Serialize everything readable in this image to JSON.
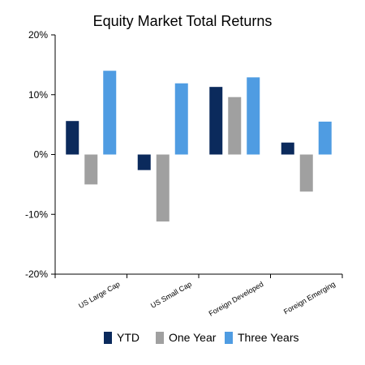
{
  "chart_data": {
    "type": "bar",
    "title": "Equity Market Total Returns",
    "xlabel": "",
    "ylabel": "",
    "categories": [
      "US Large Cap",
      "US Small Cap",
      "Foreign Developed",
      "Foreign Emerging"
    ],
    "series": [
      {
        "name": "YTD",
        "color": "#0b2a5c",
        "values": [
          5.6,
          -2.6,
          11.3,
          2.0
        ]
      },
      {
        "name": "One Year",
        "color": "#a0a0a0",
        "values": [
          -5.0,
          -11.2,
          9.6,
          -6.2
        ]
      },
      {
        "name": "Three Years",
        "color": "#4f9ce2",
        "values": [
          14.0,
          11.9,
          12.9,
          5.5
        ]
      }
    ],
    "ylim": [
      -20,
      20
    ],
    "yticks": [
      -20,
      -10,
      0,
      10,
      20
    ],
    "ytick_labels": [
      "-20%",
      "-10%",
      "0%",
      "10%",
      "20%"
    ],
    "grid": false,
    "legend_position": "bottom"
  }
}
